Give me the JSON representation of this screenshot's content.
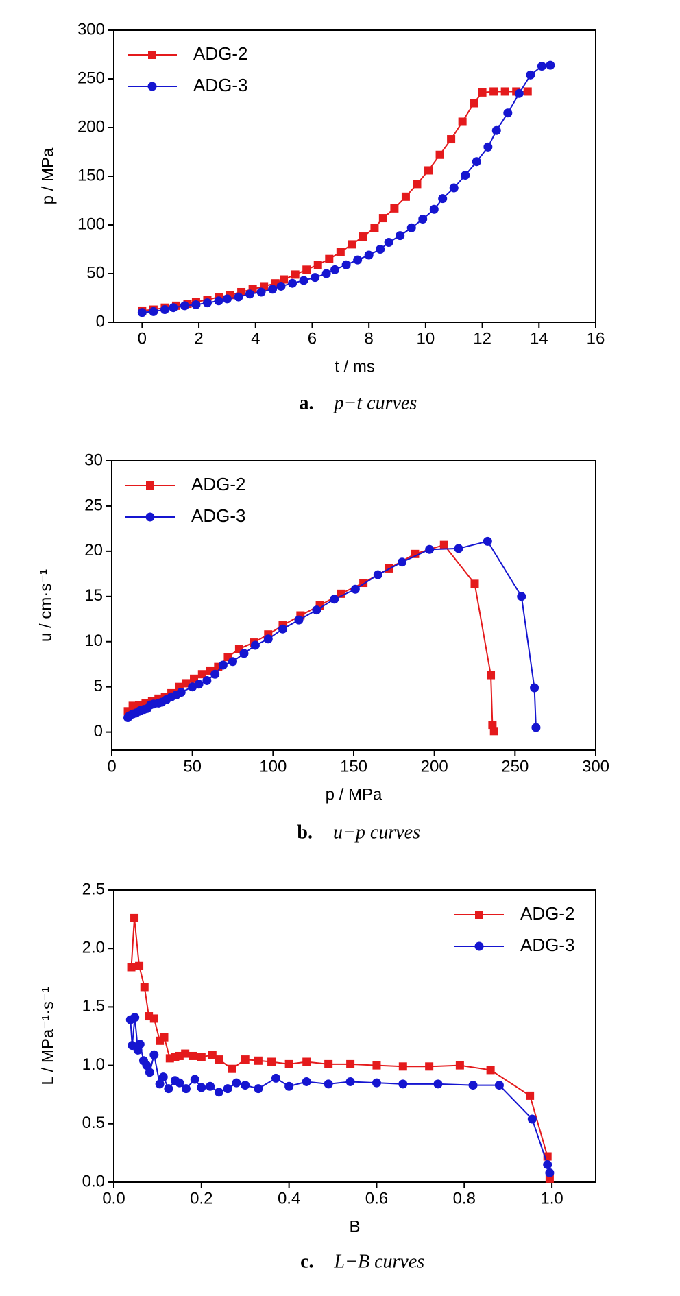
{
  "chart_data": [
    {
      "type": "line",
      "caption_label": "a.",
      "caption": "p−t curves",
      "xlabel": "t / ms",
      "ylabel": "p / MPa",
      "xlim": [
        -1,
        16
      ],
      "xticks": [
        0,
        2,
        4,
        6,
        8,
        10,
        12,
        14,
        16
      ],
      "ylim": [
        0,
        300
      ],
      "yticks": [
        0,
        50,
        100,
        150,
        200,
        250,
        300
      ],
      "legend": "upper left",
      "series": [
        {
          "name": "ADG-2",
          "color": "#e41a1c",
          "marker": "square",
          "x": [
            0,
            0.4,
            0.8,
            1.2,
            1.6,
            1.9,
            2.3,
            2.7,
            3.1,
            3.5,
            3.9,
            4.3,
            4.7,
            5.0,
            5.4,
            5.8,
            6.2,
            6.6,
            7.0,
            7.4,
            7.8,
            8.2,
            8.5,
            8.9,
            9.3,
            9.7,
            10.1,
            10.5,
            10.9,
            11.3,
            11.7,
            12.0,
            12.4,
            12.8,
            13.2,
            13.6
          ],
          "values": [
            12,
            13,
            15,
            17,
            19,
            21,
            23,
            26,
            28,
            31,
            34,
            37,
            40,
            44,
            49,
            54,
            59,
            65,
            72,
            80,
            88,
            97,
            107,
            117,
            129,
            142,
            156,
            172,
            188,
            206,
            225,
            236,
            237,
            237,
            237,
            237
          ]
        },
        {
          "name": "ADG-3",
          "color": "#1515d0",
          "marker": "circle",
          "x": [
            0,
            0.4,
            0.8,
            1.1,
            1.5,
            1.9,
            2.3,
            2.7,
            3.0,
            3.4,
            3.8,
            4.2,
            4.6,
            4.9,
            5.3,
            5.7,
            6.1,
            6.5,
            6.8,
            7.2,
            7.6,
            8.0,
            8.4,
            8.7,
            9.1,
            9.5,
            9.9,
            10.3,
            10.6,
            11.0,
            11.4,
            11.8,
            12.2,
            12.5,
            12.9,
            13.3,
            13.7,
            14.1,
            14.4
          ],
          "values": [
            10,
            11,
            13,
            15,
            17,
            18,
            20,
            22,
            24,
            26,
            29,
            31,
            34,
            37,
            40,
            43,
            46,
            50,
            54,
            59,
            64,
            69,
            75,
            82,
            89,
            97,
            106,
            116,
            127,
            138,
            151,
            165,
            180,
            197,
            215,
            235,
            254,
            263,
            264
          ]
        }
      ]
    },
    {
      "type": "line",
      "caption_label": "b.",
      "caption": "u−p curves",
      "xlabel": "p / MPa",
      "ylabel": "u / cm·s⁻¹",
      "xlim": [
        0,
        300
      ],
      "xticks": [
        0,
        50,
        100,
        150,
        200,
        250,
        300
      ],
      "ylim": [
        -2,
        30
      ],
      "yticks": [
        0,
        5,
        10,
        15,
        20,
        25,
        30
      ],
      "legend": "upper left",
      "series": [
        {
          "name": "ADG-2",
          "color": "#e41a1c",
          "marker": "square",
          "x": [
            10,
            13,
            17,
            21,
            25,
            29,
            33,
            37,
            42,
            46,
            51,
            56,
            61,
            66,
            72,
            79,
            88,
            97,
            106,
            117,
            129,
            142,
            156,
            172,
            188,
            206,
            225,
            235,
            236,
            237
          ],
          "values": [
            2.3,
            2.9,
            3.0,
            3.2,
            3.4,
            3.7,
            3.9,
            4.3,
            5.0,
            5.4,
            5.9,
            6.4,
            6.8,
            7.2,
            8.3,
            9.2,
            9.9,
            10.8,
            11.8,
            12.9,
            14.0,
            15.3,
            16.5,
            18.1,
            19.7,
            20.7,
            16.4,
            6.3,
            0.8,
            0.1
          ]
        },
        {
          "name": "ADG-3",
          "color": "#1515d0",
          "marker": "circle",
          "x": [
            10,
            11,
            13,
            15,
            17,
            18,
            20,
            22,
            24,
            26,
            29,
            31,
            34,
            37,
            40,
            43,
            50,
            54,
            59,
            64,
            69,
            75,
            82,
            89,
            97,
            106,
            116,
            127,
            138,
            151,
            165,
            180,
            197,
            215,
            233,
            254,
            262,
            263
          ],
          "values": [
            1.6,
            1.8,
            2.0,
            2.1,
            2.3,
            2.4,
            2.5,
            2.6,
            3.0,
            3.1,
            3.2,
            3.3,
            3.6,
            3.9,
            4.1,
            4.4,
            5.0,
            5.3,
            5.7,
            6.4,
            7.4,
            7.8,
            8.7,
            9.6,
            10.3,
            11.4,
            12.4,
            13.5,
            14.7,
            15.8,
            17.4,
            18.8,
            20.2,
            20.3,
            21.1,
            15.0,
            4.9,
            0.5
          ]
        }
      ]
    },
    {
      "type": "line",
      "caption_label": "c.",
      "caption": "L−B curves",
      "xlabel": "B",
      "ylabel": "L / MPa⁻¹·s⁻¹",
      "xlim": [
        0,
        1.1
      ],
      "xticks": [
        {
          "value": 0,
          "label": "0.0"
        },
        0.2,
        0.4,
        0.6,
        0.8,
        {
          "value": 1,
          "label": "1.0"
        }
      ],
      "ylim": [
        0,
        2.5
      ],
      "yticks": [
        {
          "value": 0,
          "label": "0.0"
        },
        0.5,
        {
          "value": 1,
          "label": "1.0"
        },
        1.5,
        {
          "value": 2,
          "label": "2.0"
        },
        2.5
      ],
      "legend": "upper right",
      "series": [
        {
          "name": "ADG-2",
          "color": "#e41a1c",
          "marker": "square",
          "x": [
            0.04,
            0.047,
            0.058,
            0.07,
            0.08,
            0.092,
            0.105,
            0.115,
            0.128,
            0.14,
            0.15,
            0.163,
            0.18,
            0.2,
            0.225,
            0.24,
            0.27,
            0.3,
            0.33,
            0.36,
            0.4,
            0.44,
            0.49,
            0.54,
            0.6,
            0.66,
            0.72,
            0.79,
            0.86,
            0.95,
            0.99,
            0.995
          ],
          "values": [
            1.84,
            2.26,
            1.85,
            1.67,
            1.42,
            1.4,
            1.21,
            1.24,
            1.06,
            1.07,
            1.08,
            1.1,
            1.08,
            1.07,
            1.09,
            1.05,
            0.97,
            1.05,
            1.04,
            1.03,
            1.01,
            1.03,
            1.01,
            1.01,
            1.0,
            0.99,
            0.99,
            1.0,
            0.96,
            0.74,
            0.22,
            0.03
          ]
        },
        {
          "name": "ADG-3",
          "color": "#1515d0",
          "marker": "circle",
          "x": [
            0.038,
            0.042,
            0.048,
            0.055,
            0.06,
            0.068,
            0.075,
            0.082,
            0.092,
            0.105,
            0.113,
            0.125,
            0.14,
            0.15,
            0.165,
            0.185,
            0.2,
            0.22,
            0.24,
            0.26,
            0.28,
            0.3,
            0.33,
            0.37,
            0.4,
            0.44,
            0.49,
            0.54,
            0.6,
            0.66,
            0.74,
            0.82,
            0.88,
            0.955,
            0.99,
            0.995
          ],
          "values": [
            1.39,
            1.17,
            1.41,
            1.13,
            1.18,
            1.04,
            1.0,
            0.94,
            1.09,
            0.84,
            0.9,
            0.8,
            0.87,
            0.85,
            0.8,
            0.88,
            0.81,
            0.82,
            0.77,
            0.8,
            0.85,
            0.83,
            0.8,
            0.89,
            0.82,
            0.86,
            0.84,
            0.86,
            0.85,
            0.84,
            0.84,
            0.83,
            0.83,
            0.54,
            0.15,
            0.08
          ]
        }
      ]
    }
  ]
}
